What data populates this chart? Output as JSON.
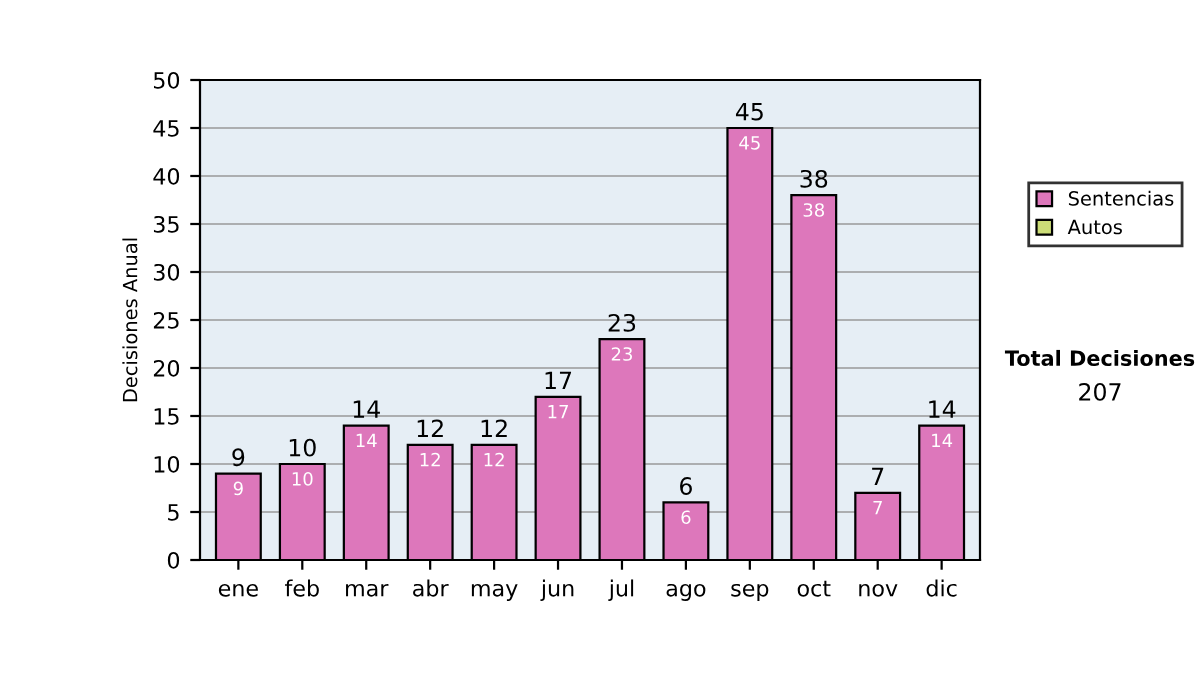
{
  "chart_data": {
    "type": "bar",
    "stacked": true,
    "ylabel": "Decisiones Anual",
    "categories": [
      "ene",
      "feb",
      "mar",
      "abr",
      "may",
      "jun",
      "jul",
      "ago",
      "sep",
      "oct",
      "nov",
      "dic"
    ],
    "series": [
      {
        "name": "Sentencias",
        "color": "#dd77bb",
        "values": [
          9,
          10,
          14,
          12,
          12,
          17,
          23,
          6,
          45,
          38,
          7,
          14
        ],
        "value_labels": [
          "9",
          "10",
          "14",
          "12",
          "12",
          "17",
          "23",
          "6",
          "45",
          "38",
          "7",
          "14"
        ]
      },
      {
        "name": "Autos",
        "color": "#ccdd77",
        "values": [
          0,
          0,
          0,
          0,
          0,
          0,
          0,
          0,
          0,
          0,
          0,
          0
        ]
      }
    ],
    "totals": [
      "9",
      "10",
      "14",
      "12",
      "12",
      "17",
      "23",
      "6",
      "45",
      "38",
      "7",
      "14"
    ],
    "ylim": [
      0,
      50
    ],
    "yticks": [
      0,
      5,
      10,
      15,
      20,
      25,
      30,
      35,
      40,
      45,
      50
    ],
    "grid": "y",
    "legend": "right",
    "annotations": [
      "Total Decisiones",
      "207"
    ]
  }
}
